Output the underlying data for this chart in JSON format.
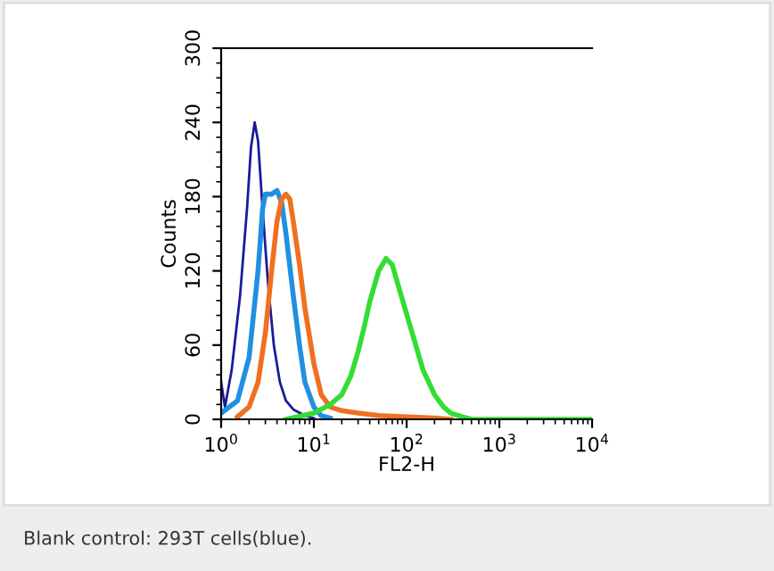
{
  "chart_data": {
    "type": "line",
    "xlabel": "FL2-H",
    "ylabel": "Counts",
    "log": "x",
    "xlim": [
      1,
      10000
    ],
    "ylim": [
      0,
      300
    ],
    "xticks": [
      {
        "value": 1,
        "label": "10$^{0}$"
      },
      {
        "value": 10,
        "label": "10$^{1}$"
      },
      {
        "value": 100,
        "label": "10$^{2}$"
      },
      {
        "value": 1000,
        "label": "10$^{3}$"
      },
      {
        "value": 10000,
        "label": "10$^{4}$"
      }
    ],
    "yticks": [
      0,
      60,
      120,
      180,
      240,
      300
    ],
    "grid": false,
    "legend": false,
    "marker": "none",
    "line_style": "solid",
    "annotations": [
      "Blank control: 293T cells(blue)."
    ],
    "series": [
      {
        "color": "#1a1a9c",
        "x": [
          1,
          1.1,
          1.3,
          1.6,
          1.9,
          2.1,
          2.3,
          2.5,
          2.8,
          3.2,
          3.7,
          4.3,
          5,
          6,
          8,
          10
        ],
        "values": [
          30,
          10,
          40,
          100,
          170,
          220,
          240,
          225,
          170,
          110,
          60,
          30,
          15,
          8,
          3,
          1
        ]
      },
      {
        "color": "#2090e0",
        "x": [
          1,
          1.5,
          2,
          2.5,
          2.8,
          3,
          3.5,
          4,
          4.5,
          5,
          6,
          7,
          8,
          10,
          12,
          15
        ],
        "values": [
          5,
          15,
          50,
          120,
          170,
          182,
          182,
          185,
          175,
          150,
          100,
          60,
          30,
          10,
          3,
          1
        ]
      },
      {
        "color": "#f07020",
        "x": [
          1.5,
          2,
          2.5,
          3,
          3.5,
          4,
          4.5,
          5,
          5.5,
          6,
          7,
          8,
          10,
          12,
          15,
          20,
          30,
          50,
          100,
          200,
          300
        ],
        "values": [
          2,
          10,
          30,
          70,
          120,
          160,
          178,
          182,
          178,
          160,
          125,
          90,
          45,
          20,
          10,
          7,
          5,
          3,
          2,
          1,
          0
        ]
      },
      {
        "color": "#33dd33",
        "x": [
          5,
          10,
          15,
          20,
          25,
          30,
          35,
          40,
          50,
          60,
          70,
          80,
          100,
          120,
          150,
          200,
          250,
          300,
          400,
          500,
          10000
        ],
        "values": [
          0,
          5,
          12,
          20,
          35,
          55,
          75,
          95,
          120,
          130,
          125,
          110,
          85,
          65,
          40,
          20,
          10,
          5,
          2,
          0,
          0
        ]
      }
    ]
  }
}
